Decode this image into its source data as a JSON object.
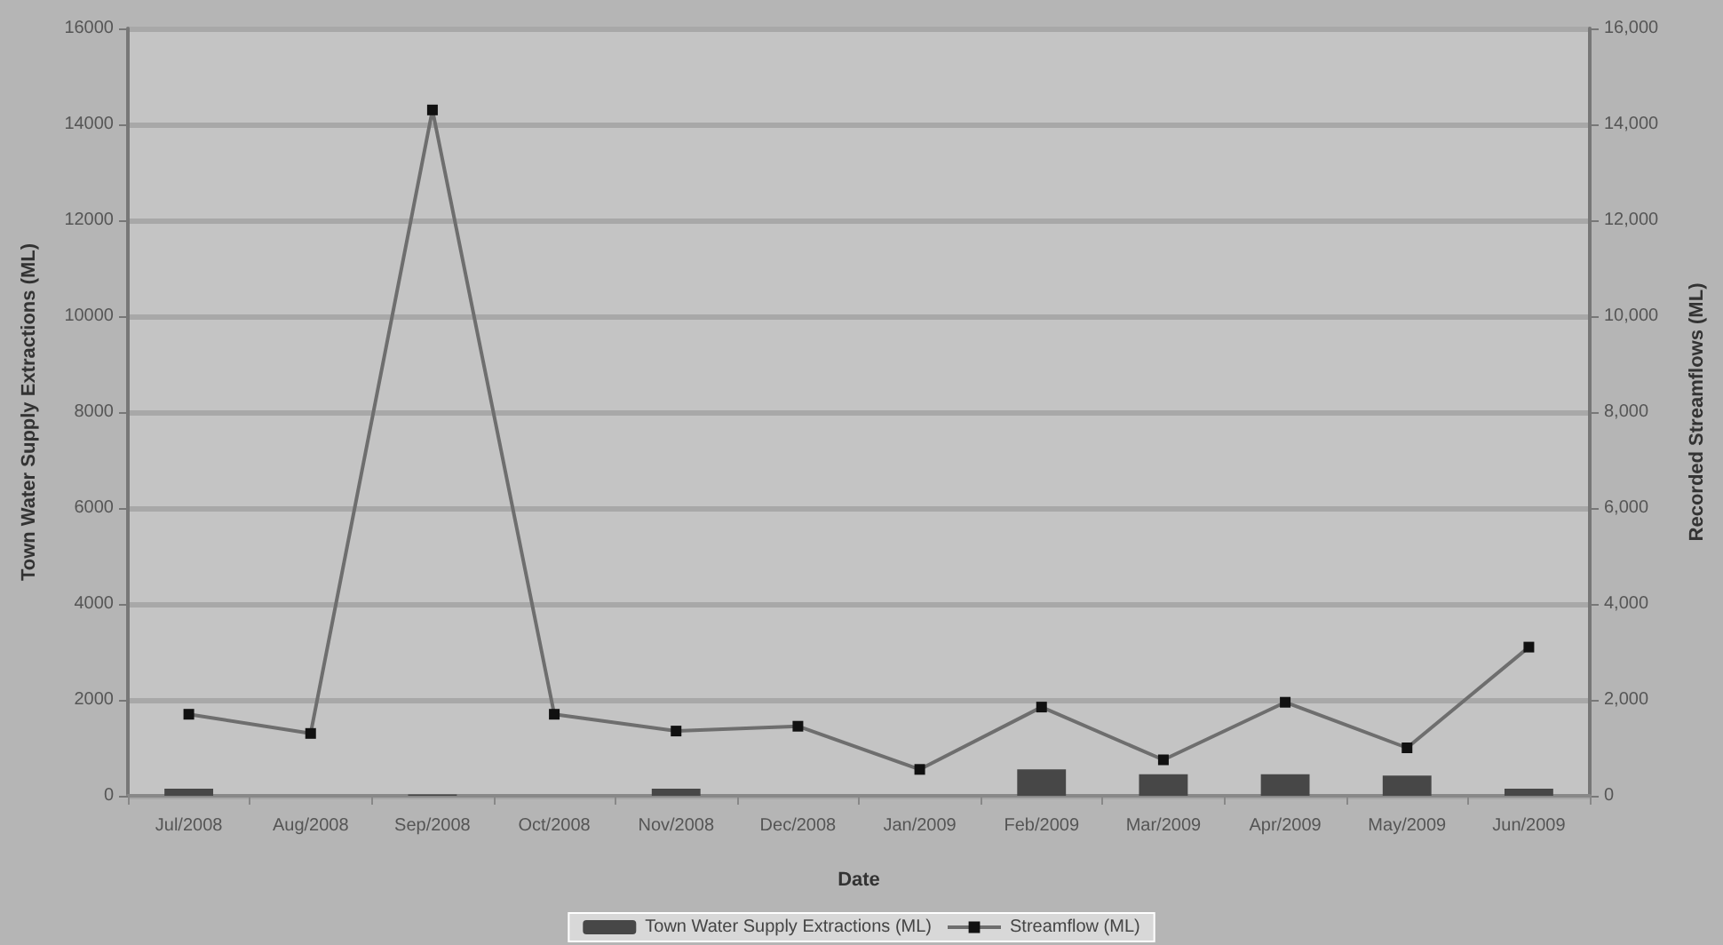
{
  "chart_data": {
    "type": "bar",
    "xlabel": "Date",
    "ylabel": "Town Water Supply Extractions (ML)",
    "y2label": "Recorded Streamflows (ML)",
    "categories": [
      "Jul/2008",
      "Aug/2008",
      "Sep/2008",
      "Oct/2008",
      "Nov/2008",
      "Dec/2008",
      "Jan/2009",
      "Feb/2009",
      "Mar/2009",
      "Apr/2009",
      "May/2009",
      "Jun/2009"
    ],
    "series": [
      {
        "name": "Town Water Supply Extractions (ML)",
        "type": "bar",
        "color": "#474747",
        "values": [
          150,
          0,
          30,
          0,
          150,
          0,
          0,
          550,
          450,
          450,
          420,
          150
        ]
      },
      {
        "name": "Streamflow (ML)",
        "type": "line",
        "axis": "y2",
        "color": "#6e6e6e",
        "marker": "square",
        "values": [
          1700,
          1300,
          14300,
          1700,
          1350,
          1450,
          550,
          1850,
          750,
          1950,
          1000,
          3100
        ]
      }
    ],
    "ylim": [
      0,
      16000
    ],
    "yticks": [
      0,
      2000,
      4000,
      6000,
      8000,
      10000,
      12000,
      14000,
      16000
    ],
    "y2lim": [
      0,
      16000
    ],
    "y2ticks": [
      {
        "value": 0,
        "label": "0"
      },
      {
        "value": 2000,
        "label": "2,000"
      },
      {
        "value": 4000,
        "label": "4,000"
      },
      {
        "value": 6000,
        "label": "6,000"
      },
      {
        "value": 8000,
        "label": "8,000"
      },
      {
        "value": 10000,
        "label": "10,000"
      },
      {
        "value": 12000,
        "label": "12,000"
      },
      {
        "value": 14000,
        "label": "14,000"
      },
      {
        "value": 16000,
        "label": "16,000"
      }
    ],
    "grid": "y",
    "legend": "bottom"
  }
}
